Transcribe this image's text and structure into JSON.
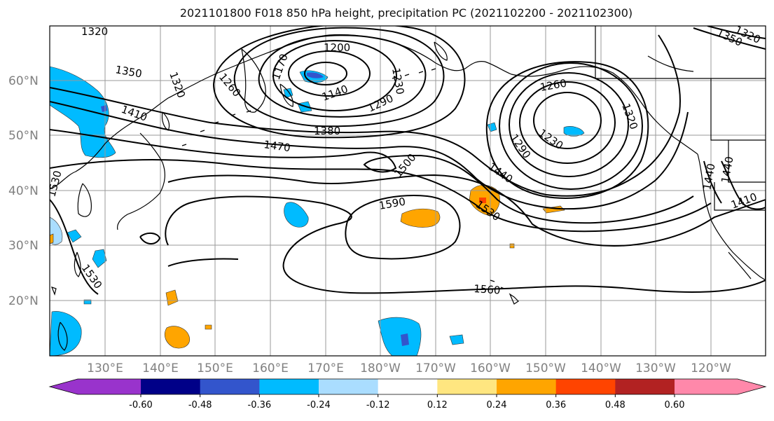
{
  "title": "2021101800 F018 850 hPa height, precipitation PC (2021102200 - 2021102300)",
  "lat_labels": [
    "60°N",
    "50°N",
    "40°N",
    "30°N",
    "20°N"
  ],
  "lon_labels": [
    "130°E",
    "140°E",
    "150°E",
    "160°E",
    "170°E",
    "180°W",
    "170°W",
    "160°W",
    "150°W",
    "140°W",
    "130°W",
    "120°W"
  ],
  "colorbar": {
    "colors": [
      "#9933cc",
      "#000088",
      "#3355cc",
      "#00bbff",
      "#aaddff",
      "#ffffff",
      "#ffe680",
      "#ffa500",
      "#ff4400",
      "#b22222",
      "#ff88aa"
    ],
    "tick_labels": [
      "-0.60",
      "-0.48",
      "-0.36",
      "-0.24",
      "-0.12",
      "0.12",
      "0.24",
      "0.36",
      "0.48",
      "0.60"
    ]
  },
  "contour_labels": [
    "1320",
    "1350",
    "1410",
    "1200",
    "1170",
    "1230",
    "1260",
    "1140",
    "1290",
    "1320",
    "1380",
    "1470",
    "1500",
    "1530",
    "1590",
    "1440",
    "1260",
    "1230",
    "1320",
    "1290",
    "1440",
    "1530",
    "1560",
    "1530",
    "1410",
    "1440",
    "1350",
    "1320"
  ]
}
